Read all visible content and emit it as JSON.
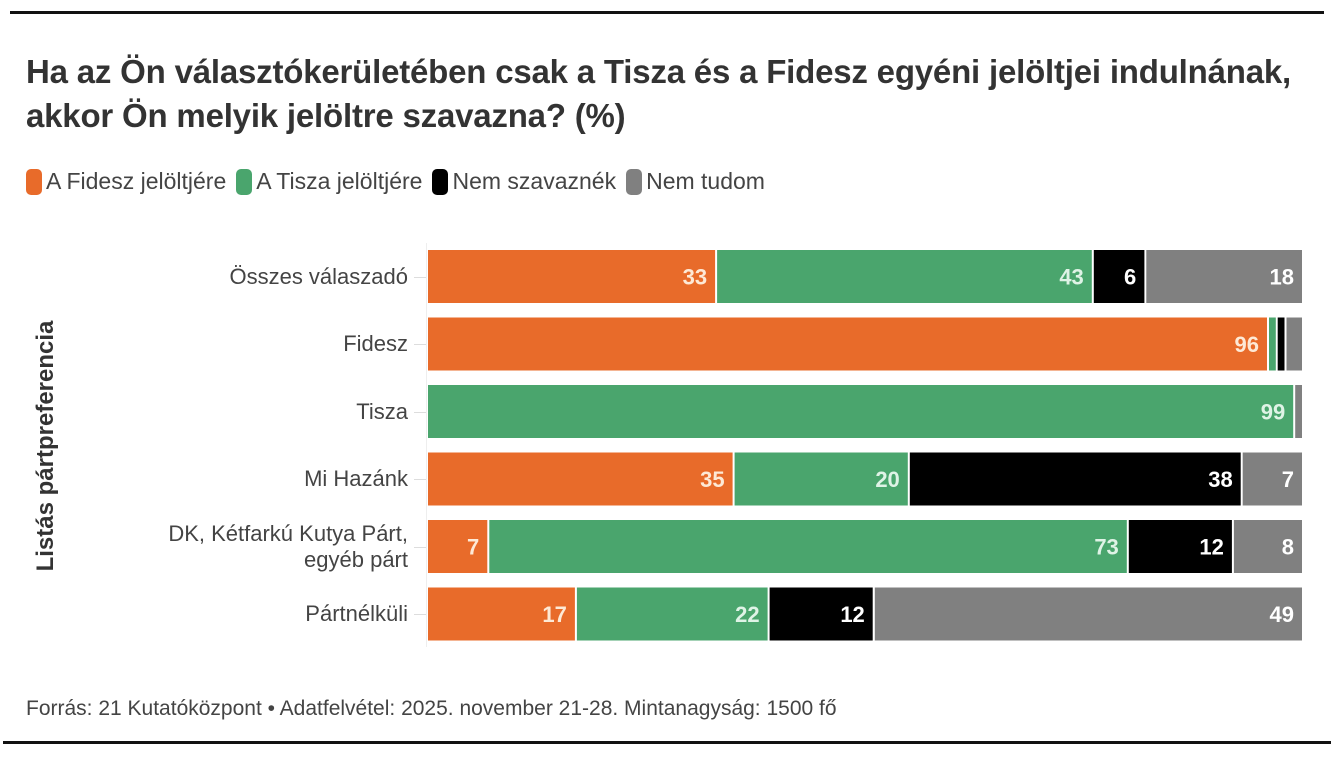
{
  "chart_data": {
    "type": "bar",
    "orientation": "horizontal",
    "stacked": true,
    "title": "Ha az Ön választókerületében csak a Tisza és a Fidesz egyéni jelöltjei indulnának, akkor Ön melyik jelöltre szavazna? (%)",
    "ylabel": "Listás pártpreferencia",
    "xlabel": "",
    "xlim": [
      0,
      100
    ],
    "grid": false,
    "legend_position": "top-left",
    "categories": [
      [
        "Összes válaszadó"
      ],
      [
        "Fidesz"
      ],
      [
        "Tisza"
      ],
      [
        "Mi Hazánk"
      ],
      [
        "DK, Kétfarkú Kutya Párt,",
        "egyéb párt"
      ],
      [
        "Pártnélküli"
      ]
    ],
    "series": [
      {
        "name": "A Fidesz jelöltjére",
        "color": "#e86b2a",
        "label_color": "#fde9d6",
        "values": [
          33,
          96,
          0,
          35,
          7,
          17
        ],
        "labels": [
          "33",
          "96",
          "",
          "35",
          "7",
          "17"
        ]
      },
      {
        "name": "A Tisza jelöltjére",
        "color": "#4aa56d",
        "label_color": "#dff3e6",
        "values": [
          43,
          1,
          99,
          20,
          73,
          22
        ],
        "labels": [
          "43",
          "",
          "99",
          "20",
          "73",
          "22"
        ]
      },
      {
        "name": "Nem szavaznék",
        "color": "#000000",
        "label_color": "#ffffff",
        "values": [
          6,
          1,
          0,
          38,
          12,
          12
        ],
        "labels": [
          "6",
          "",
          "",
          "38",
          "12",
          "12"
        ]
      },
      {
        "name": "Nem tudom",
        "color": "#808080",
        "label_color": "#ffffff",
        "values": [
          18,
          2,
          1,
          7,
          8,
          49
        ],
        "labels": [
          "18",
          "",
          "",
          "7",
          "8",
          "49"
        ]
      }
    ]
  },
  "title": "Ha az Ön választókerületében csak a Tisza és a Fidesz egyéni jelöltjei indulnának, akkor Ön melyik jelöltre szavazna? (%)",
  "legend": [
    {
      "label": "A Fidesz jelöltjére",
      "color": "#e86b2a"
    },
    {
      "label": "A Tisza jelöltjére",
      "color": "#4aa56d"
    },
    {
      "label": "Nem szavaznék",
      "color": "#000000"
    },
    {
      "label": "Nem tudom",
      "color": "#808080"
    }
  ],
  "ylabel": "Listás pártpreferencia",
  "footer": "Forrás: 21 Kutatóközpont • Adatfelvétel: 2025. november 21-28. Mintanagyság: 1500 fő"
}
